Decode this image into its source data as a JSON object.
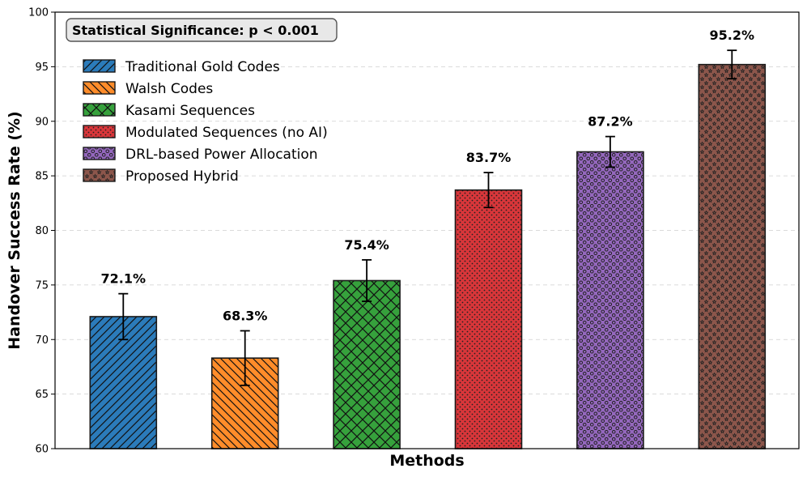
{
  "chart_data": {
    "type": "bar",
    "categories": [
      "Traditional Gold Codes",
      "Walsh Codes",
      "Kasami Sequences",
      "Modulated Sequences (no AI)",
      "DRL-based Power Allocation",
      "Proposed Hybrid"
    ],
    "values": [
      72.1,
      68.3,
      75.4,
      83.7,
      87.2,
      95.2
    ],
    "errors": [
      2.1,
      2.5,
      1.9,
      1.6,
      1.4,
      1.3
    ],
    "value_labels": [
      "72.1%",
      "68.3%",
      "75.4%",
      "83.7%",
      "87.2%",
      "95.2%"
    ],
    "colors": [
      "#2b7bba",
      "#ff8c2a",
      "#36a13c",
      "#d9363a",
      "#9467bd",
      "#8c564b"
    ],
    "hatches": [
      "diagonal-forward",
      "diagonal-back",
      "crosshatch",
      "dots",
      "circles",
      "stars"
    ],
    "title": "",
    "xlabel": "Methods",
    "ylabel": "Handover Success Rate (%)",
    "ylim": [
      60,
      100
    ],
    "yticks": [
      60,
      65,
      70,
      75,
      80,
      85,
      90,
      95,
      100
    ],
    "grid": "y-dashed",
    "legend_position": "top-left",
    "annotation": "Statistical Significance: p < 0.001"
  }
}
